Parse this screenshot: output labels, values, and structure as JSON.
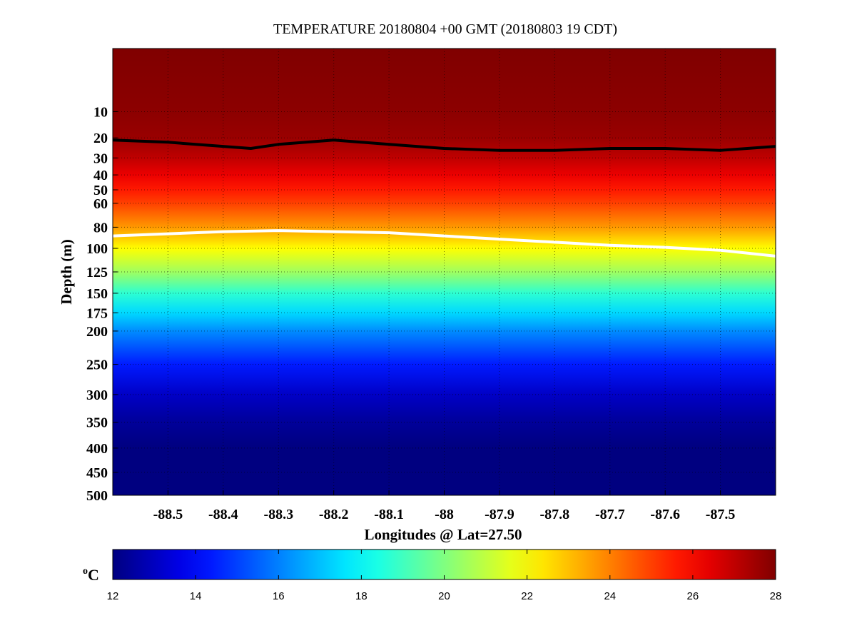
{
  "chart_data": {
    "type": "heatmap",
    "title": "TEMPERATURE 20180804 +00 GMT (20180803 19 CDT)",
    "xlabel": "Longitudes @ Lat=27.50",
    "ylabel": "Depth (m)",
    "xlim": [
      -88.6,
      -87.4
    ],
    "ylim": [
      500,
      0
    ],
    "y_axis_scale": "sqrt",
    "x_ticks": [
      -88.5,
      -88.4,
      -88.3,
      -88.2,
      -88.1,
      -88.0,
      -87.9,
      -87.8,
      -87.7,
      -87.6,
      -87.5
    ],
    "x_tick_labels": [
      "-88.5",
      "-88.4",
      "-88.3",
      "-88.2",
      "-88.1",
      "-88",
      "-87.9",
      "-87.8",
      "-87.7",
      "-87.6",
      "-87.5"
    ],
    "y_ticks": [
      10,
      20,
      30,
      40,
      50,
      60,
      80,
      100,
      125,
      150,
      175,
      200,
      250,
      300,
      350,
      400,
      450,
      500
    ],
    "y_tick_labels": [
      "10",
      "20",
      "30",
      "40",
      "50",
      "60",
      "80",
      "100",
      "125",
      "150",
      "175",
      "200",
      "250",
      "300",
      "350",
      "400",
      "450",
      "500"
    ],
    "grid": true,
    "colormap": "jet",
    "colorbar": {
      "orientation": "horizontal",
      "location": "bottom",
      "range": [
        12,
        28
      ],
      "ticks": [
        12,
        14,
        16,
        18,
        20,
        22,
        24,
        26,
        28
      ],
      "tick_labels": [
        "12",
        "14",
        "16",
        "18",
        "20",
        "22",
        "24",
        "26",
        "28"
      ],
      "unit_superscript": "o",
      "unit": "C"
    },
    "temperature_profile": {
      "depth_m": [
        0,
        10,
        20,
        30,
        40,
        50,
        60,
        80,
        100,
        125,
        150,
        175,
        200,
        250,
        300,
        350,
        400,
        450,
        500
      ],
      "temp_c": [
        28,
        27.8,
        27.6,
        27.0,
        26.3,
        25.6,
        25.0,
        23.6,
        22.0,
        20.5,
        18.7,
        17.4,
        16.2,
        14.4,
        13.1,
        12.4,
        12.0,
        12.0,
        12.0
      ]
    },
    "contours": [
      {
        "color": "#000000",
        "longitude": [
          -88.6,
          -88.5,
          -88.4,
          -88.35,
          -88.3,
          -88.2,
          -88.1,
          -88.0,
          -87.9,
          -87.8,
          -87.7,
          -87.6,
          -87.5,
          -87.4
        ],
        "depth_m": [
          21,
          22,
          24,
          25,
          23,
          21,
          23,
          25,
          26,
          26,
          25,
          25,
          26,
          24
        ]
      },
      {
        "color": "#ffffff",
        "longitude": [
          -88.6,
          -88.5,
          -88.4,
          -88.3,
          -88.2,
          -88.1,
          -88.0,
          -87.9,
          -87.8,
          -87.7,
          -87.6,
          -87.5,
          -87.4
        ],
        "depth_m": [
          88,
          86,
          84,
          83,
          84,
          85,
          88,
          91,
          94,
          97,
          99,
          102,
          108
        ]
      }
    ]
  }
}
